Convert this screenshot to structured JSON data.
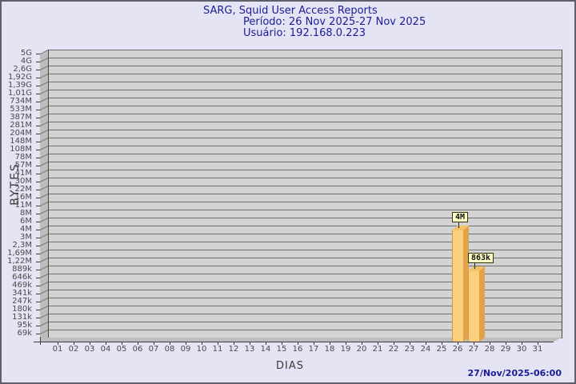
{
  "title": {
    "line1": "SARG, Squid User Access Reports",
    "line2": "Período: 26 Nov 2025-27 Nov 2025",
    "line3": "Usuário: 192.168.0.223"
  },
  "axis": {
    "y_label": "BYTES",
    "x_label": "DIAS"
  },
  "footer": {
    "timestamp": "27/Nov/2025-06:00"
  },
  "chart_data": {
    "type": "bar",
    "title": "SARG, Squid User Access Reports",
    "subtitle": "Período: 26 Nov 2025-27 Nov 2025",
    "user": "Usuário: 192.168.0.223",
    "xlabel": "DIAS",
    "ylabel": "BYTES",
    "y_scale": "log",
    "grid": true,
    "y_tick_labels": [
      "5G",
      "4G",
      "2,6G",
      "1,92G",
      "1,39G",
      "1,01G",
      "734M",
      "533M",
      "387M",
      "281M",
      "204M",
      "148M",
      "108M",
      "78M",
      "57M",
      "41M",
      "30M",
      "22M",
      "16M",
      "11M",
      "8M",
      "6M",
      "4M",
      "3M",
      "2,3M",
      "1,69M",
      "1,22M",
      "889k",
      "646k",
      "469k",
      "341k",
      "247k",
      "180k",
      "131k",
      "95k",
      "69k"
    ],
    "x_tick_labels": [
      "01",
      "02",
      "03",
      "04",
      "05",
      "06",
      "07",
      "08",
      "09",
      "10",
      "11",
      "12",
      "13",
      "14",
      "15",
      "16",
      "17",
      "18",
      "19",
      "20",
      "21",
      "22",
      "23",
      "24",
      "25",
      "26",
      "27",
      "28",
      "29",
      "30",
      "31"
    ],
    "bars": [
      {
        "day": "26",
        "value_label": "4M"
      },
      {
        "day": "27",
        "value_label": "863k"
      }
    ],
    "timestamp": "27/Nov/2025-06:00"
  },
  "colors": {
    "background": "#e4e4f4",
    "title_text": "#1c1c96",
    "plot_bg": "#d3d3d3",
    "grid_line": "#707070",
    "wall": "#bdbdbd",
    "bar_front": "#fccf7c",
    "bar_side": "#e2a348",
    "bar_top": "#f3c168",
    "value_box_bg": "#ffffc6"
  }
}
